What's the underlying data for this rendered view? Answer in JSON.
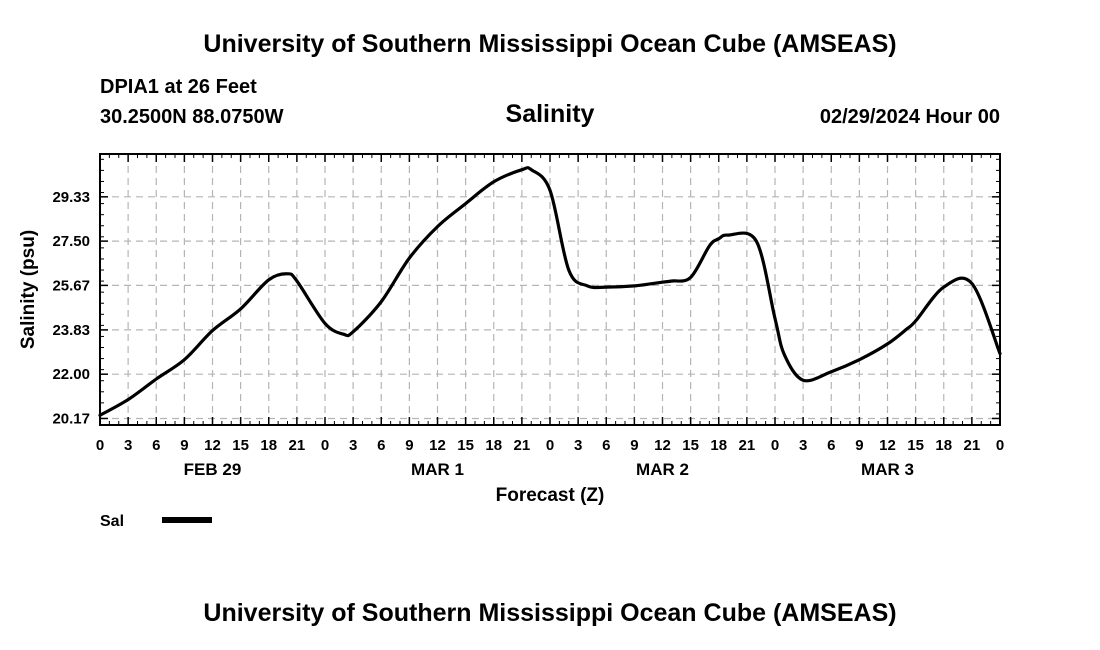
{
  "header": {
    "title": "University of Southern Mississippi Ocean Cube (AMSEAS)",
    "station": "DPIA1 at 26 Feet",
    "coordinates": "30.2500N  88.0750W",
    "timestamp": "02/29/2024 Hour 00"
  },
  "footer": {
    "title": "University of Southern Mississippi Ocean Cube (AMSEAS)"
  },
  "chart_data": {
    "type": "line",
    "title": "Salinity",
    "xlabel": "Forecast (Z)",
    "ylabel": "Salinity (psu)",
    "ylim": [
      19.9,
      31.1
    ],
    "yticks": [
      "20.17",
      "22.00",
      "23.83",
      "25.67",
      "27.50",
      "29.33"
    ],
    "xlim": [
      0,
      96
    ],
    "xticks": [
      "0",
      "3",
      "6",
      "9",
      "12",
      "15",
      "18",
      "21",
      "0",
      "3",
      "6",
      "9",
      "12",
      "15",
      "18",
      "21",
      "0",
      "3",
      "6",
      "9",
      "12",
      "15",
      "18",
      "21",
      "0",
      "3",
      "6",
      "9",
      "12",
      "15",
      "18",
      "21",
      "0"
    ],
    "day_labels": [
      {
        "label": "FEB 29",
        "hour": 12
      },
      {
        "label": "MAR 1",
        "hour": 36
      },
      {
        "label": "MAR 2",
        "hour": 60
      },
      {
        "label": "MAR 3",
        "hour": 84
      }
    ],
    "grid": true,
    "legend": "bottom-left",
    "series": [
      {
        "name": "Sal",
        "color": "#000000",
        "x": [
          0,
          3,
          6,
          9,
          12,
          15,
          18,
          20,
          21,
          24,
          26,
          27,
          30,
          33,
          36,
          39,
          42,
          45,
          46,
          48,
          50,
          52,
          54,
          57,
          60,
          61,
          63,
          65,
          66,
          67,
          70,
          72,
          73,
          75,
          78,
          81,
          84,
          86,
          87,
          90,
          93,
          96
        ],
        "values": [
          20.3,
          20.95,
          21.8,
          22.6,
          23.8,
          24.7,
          25.9,
          26.15,
          25.85,
          24.1,
          23.65,
          23.75,
          25.0,
          26.8,
          28.1,
          29.05,
          29.95,
          30.45,
          30.45,
          29.6,
          26.3,
          25.65,
          25.6,
          25.65,
          25.8,
          25.85,
          26.0,
          27.3,
          27.6,
          27.75,
          27.5,
          24.3,
          22.8,
          21.75,
          22.1,
          22.6,
          23.25,
          23.85,
          24.2,
          25.6,
          25.75,
          22.85
        ]
      }
    ]
  }
}
